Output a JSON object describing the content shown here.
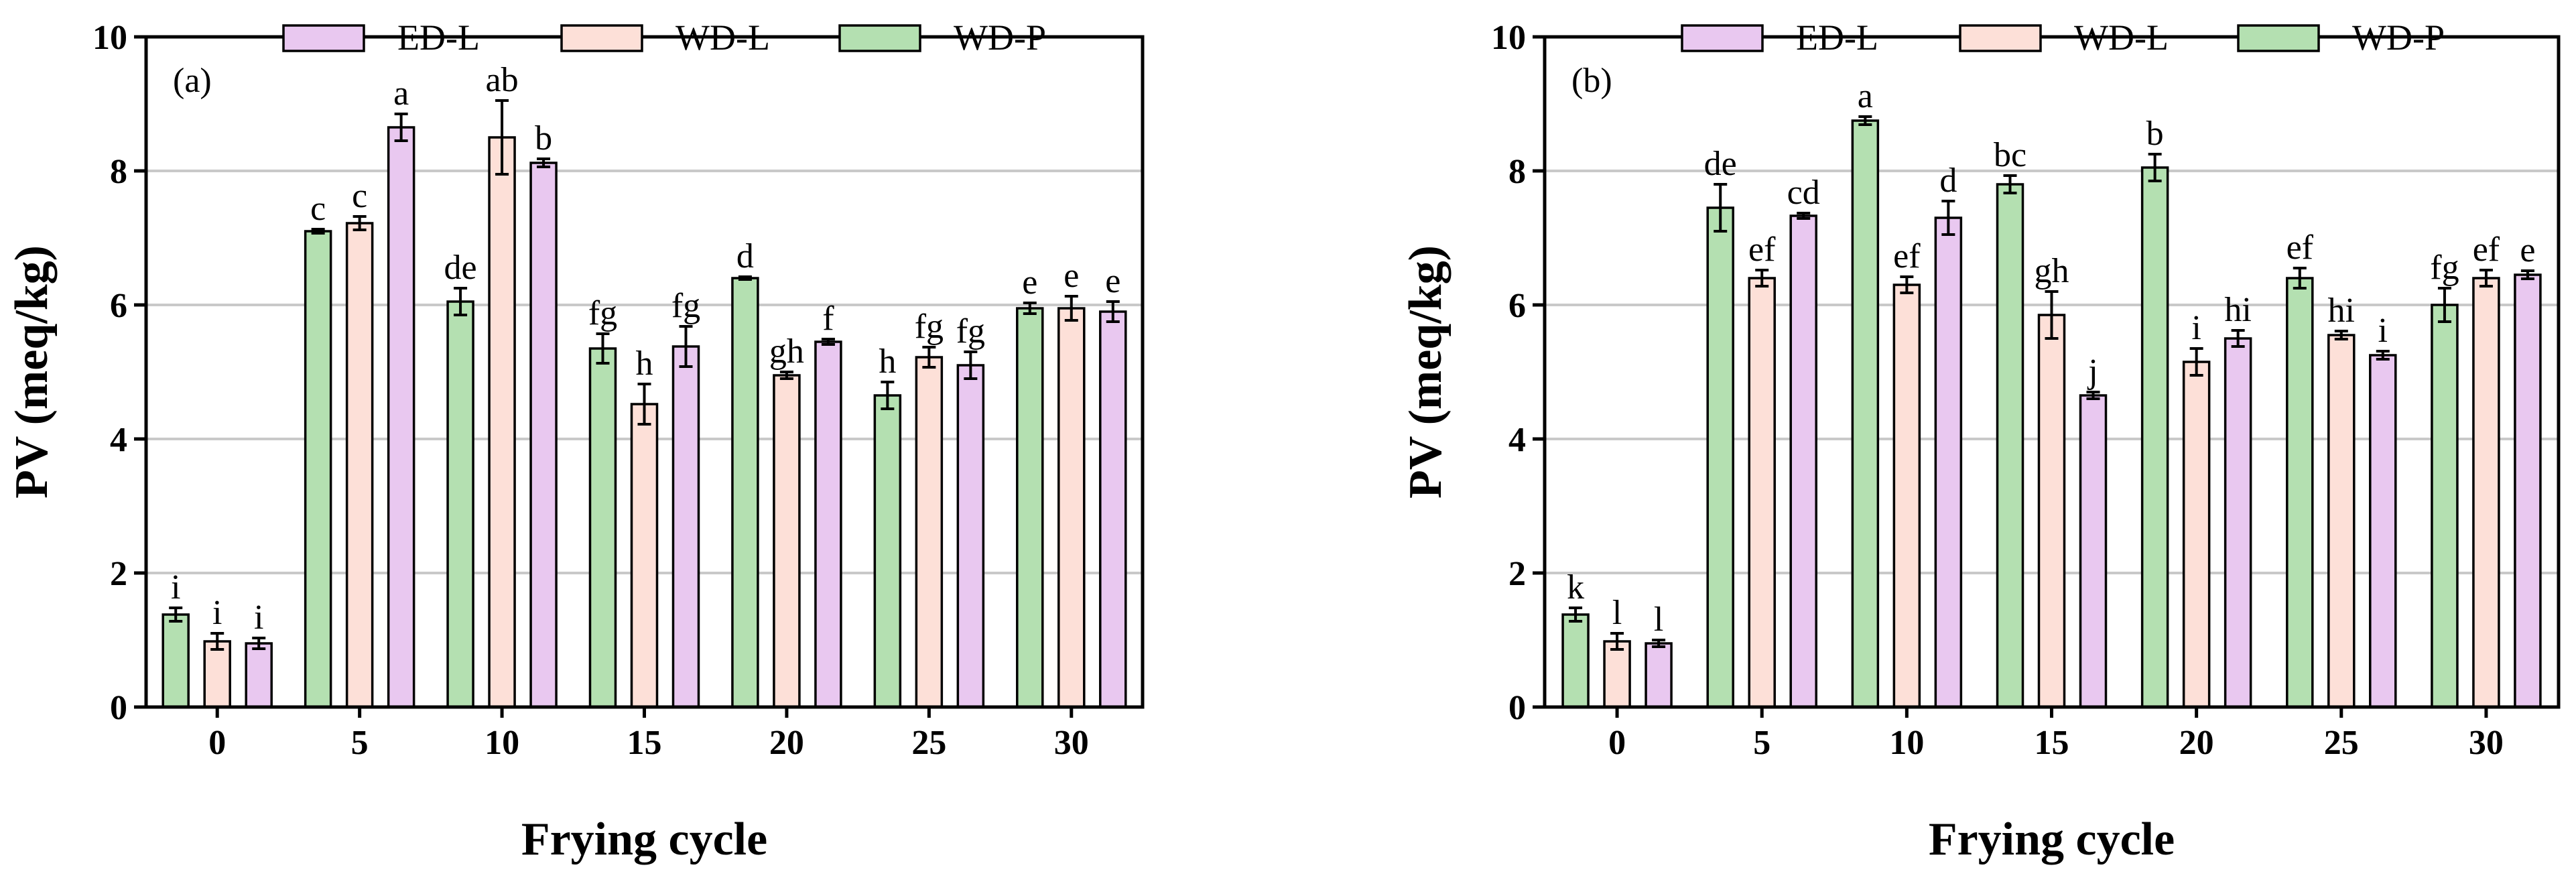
{
  "colors": {
    "WD-P": "#b4e0b1",
    "WD-L": "#fde0d8",
    "ED-L": "#e9c8f0",
    "grid": "#c9c9c9",
    "axis": "#000000"
  },
  "legend_order": [
    "ED-L",
    "WD-L",
    "WD-P"
  ],
  "chart_data": [
    {
      "type": "bar",
      "panel_label": "(a)",
      "xlabel": "Frying cycle",
      "ylabel": "PV (meq/kg)",
      "ylim": [
        0,
        10
      ],
      "yticks": [
        0,
        2,
        4,
        6,
        8,
        10
      ],
      "grid": true,
      "legend_placement": "top",
      "categories": [
        "0",
        "5",
        "10",
        "15",
        "20",
        "25",
        "30"
      ],
      "series": [
        {
          "name": "WD-P",
          "values": [
            1.38,
            7.1,
            6.05,
            5.35,
            6.4,
            4.65,
            5.95
          ],
          "errors": [
            0.1,
            0.03,
            0.2,
            0.22,
            0.02,
            0.2,
            0.08
          ],
          "labels": [
            "i",
            "c",
            "de",
            "fg",
            "d",
            "h",
            "e"
          ]
        },
        {
          "name": "WD-L",
          "values": [
            0.98,
            7.22,
            8.5,
            4.52,
            4.95,
            5.22,
            5.95
          ],
          "errors": [
            0.12,
            0.1,
            0.55,
            0.3,
            0.05,
            0.15,
            0.18
          ],
          "labels": [
            "i",
            "c",
            "ab",
            "h",
            "gh",
            "fg",
            "e"
          ]
        },
        {
          "name": "ED-L",
          "values": [
            0.95,
            8.65,
            8.12,
            5.38,
            5.45,
            5.1,
            5.9
          ],
          "errors": [
            0.08,
            0.2,
            0.06,
            0.3,
            0.04,
            0.2,
            0.15
          ],
          "labels": [
            "i",
            "a",
            "b",
            "fg",
            "f",
            "fg",
            "e"
          ]
        }
      ]
    },
    {
      "type": "bar",
      "panel_label": "(b)",
      "xlabel": "Frying cycle",
      "ylabel": "PV (meq/kg)",
      "ylim": [
        0,
        10
      ],
      "yticks": [
        0,
        2,
        4,
        6,
        8,
        10
      ],
      "grid": true,
      "legend_placement": "top",
      "categories": [
        "0",
        "5",
        "10",
        "15",
        "20",
        "25",
        "30"
      ],
      "series": [
        {
          "name": "WD-P",
          "values": [
            1.38,
            7.45,
            8.75,
            7.8,
            8.05,
            6.4,
            6.0
          ],
          "errors": [
            0.1,
            0.35,
            0.06,
            0.13,
            0.2,
            0.15,
            0.25
          ],
          "labels": [
            "k",
            "de",
            "a",
            "bc",
            "b",
            "ef",
            "fg"
          ]
        },
        {
          "name": "WD-L",
          "values": [
            0.98,
            6.4,
            6.3,
            5.85,
            5.15,
            5.55,
            6.4
          ],
          "errors": [
            0.12,
            0.12,
            0.12,
            0.35,
            0.2,
            0.06,
            0.12
          ],
          "labels": [
            "l",
            "ef",
            "ef",
            "gh",
            "i",
            "hi",
            "ef"
          ]
        },
        {
          "name": "ED-L",
          "values": [
            0.95,
            7.33,
            7.3,
            4.65,
            5.5,
            5.25,
            6.45
          ],
          "errors": [
            0.05,
            0.04,
            0.25,
            0.05,
            0.12,
            0.06,
            0.06
          ],
          "labels": [
            "l",
            "cd",
            "d",
            "j",
            "hi",
            "i",
            "e"
          ]
        }
      ]
    }
  ]
}
